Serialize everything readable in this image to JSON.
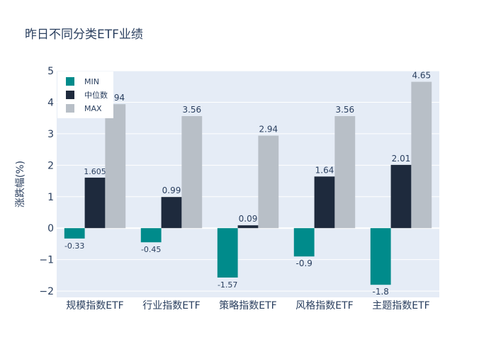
{
  "chart_data": {
    "type": "bar",
    "title": "昨日不同分类ETF业绩",
    "xlabel": "",
    "ylabel": "涨跌幅(%)",
    "ylim": [
      -2.2,
      5
    ],
    "yticks": [
      -2,
      -1,
      0,
      1,
      2,
      3,
      4,
      5
    ],
    "grid": true,
    "legend_position": "top-left",
    "categories": [
      "规模指数ETF",
      "行业指数ETF",
      "策略指数ETF",
      "风格指数ETF",
      "主题指数ETF"
    ],
    "series": [
      {
        "name": "MIN",
        "color": "#008b8b",
        "values": [
          -0.33,
          -0.45,
          -1.57,
          -0.9,
          -1.8
        ],
        "labels": [
          "-0.33",
          "-0.45",
          "-1.57",
          "-0.9",
          "-1.8"
        ]
      },
      {
        "name": "中位数",
        "color": "#1e2a3d",
        "values": [
          1.605,
          0.99,
          0.09,
          1.64,
          2.01
        ],
        "labels": [
          "1.605",
          "0.99",
          "0.09",
          "1.64",
          "2.01"
        ]
      },
      {
        "name": "MAX",
        "color": "#b8bfc7",
        "values": [
          3.94,
          3.56,
          2.94,
          3.56,
          4.65
        ],
        "labels": [
          "3.94",
          "3.56",
          "2.94",
          "3.56",
          "4.65"
        ]
      }
    ]
  }
}
